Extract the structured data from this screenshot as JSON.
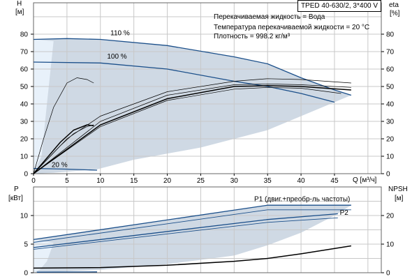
{
  "chart_data": [
    {
      "type": "line",
      "title": "TPED 40-630/2, 3*400 V",
      "info": [
        "Перекачиваемая жидкость = Вода",
        "Температура перекачиваемой жидкости = 20 °C",
        "Плотность = 998.2 кг/м³"
      ],
      "xlabel": "Q [м³/ч]",
      "ylabel": "H",
      "yunit": "[м]",
      "y2label": "eta",
      "y2unit": "[%]",
      "xlim": [
        0,
        52
      ],
      "ylim": [
        0,
        98
      ],
      "xticks": [
        0,
        5,
        10,
        15,
        20,
        25,
        30,
        35,
        40,
        45
      ],
      "yticks": [
        0,
        10,
        20,
        30,
        40,
        50,
        60,
        70,
        80
      ],
      "y2ticks": [
        0,
        10,
        20,
        30,
        40,
        50,
        60,
        70,
        80
      ],
      "grid": true,
      "shade_region": [
        [
          0,
          77
        ],
        [
          5,
          77.5
        ],
        [
          10,
          77
        ],
        [
          20,
          73.5
        ],
        [
          30,
          67
        ],
        [
          35,
          63
        ],
        [
          40,
          55
        ],
        [
          45,
          48
        ],
        [
          47.5,
          45
        ],
        [
          40,
          33
        ],
        [
          35,
          25
        ],
        [
          25,
          15
        ],
        [
          15,
          8
        ],
        [
          9.5,
          2.5
        ],
        [
          3,
          0.5
        ],
        [
          0,
          0
        ]
      ],
      "series": [
        {
          "name": "110 %",
          "label": "110 %",
          "kind": "head",
          "values": [
            [
              0,
              77
            ],
            [
              5,
              77.5
            ],
            [
              10,
              77
            ],
            [
              20,
              73.5
            ],
            [
              30,
              67
            ],
            [
              35,
              63
            ],
            [
              40,
              55
            ],
            [
              45,
              48
            ],
            [
              47.5,
              45
            ]
          ]
        },
        {
          "name": "100 %",
          "label": "100 %",
          "kind": "head",
          "values": [
            [
              0,
              64
            ],
            [
              10,
              63.5
            ],
            [
              20,
              60
            ],
            [
              30,
              53
            ],
            [
              35,
              50
            ],
            [
              40,
              46
            ],
            [
              45,
              41
            ]
          ]
        },
        {
          "name": "20 %",
          "label": "20 %",
          "kind": "head",
          "values": [
            [
              0,
              3
            ],
            [
              5,
              2.6
            ],
            [
              9.5,
              2
            ]
          ]
        },
        {
          "name": "eta-1",
          "kind": "eta-thin",
          "values": [
            [
              0,
              0
            ],
            [
              5,
              20
            ],
            [
              10,
              33
            ],
            [
              20,
              47
            ],
            [
              30,
              53
            ],
            [
              35,
              54.5
            ],
            [
              40,
              54
            ],
            [
              47.5,
              52
            ]
          ]
        },
        {
          "name": "eta-2",
          "kind": "eta-thin",
          "values": [
            [
              0,
              0
            ],
            [
              10,
              30
            ],
            [
              20,
              45
            ],
            [
              30,
              51
            ],
            [
              35,
              51.5
            ],
            [
              40,
              51
            ],
            [
              47.5,
              49.5
            ]
          ]
        },
        {
          "name": "eta-3",
          "kind": "eta-thick",
          "values": [
            [
              0,
              0
            ],
            [
              10,
              28
            ],
            [
              20,
              43
            ],
            [
              30,
              50
            ],
            [
              35,
              50.5
            ],
            [
              40,
              50
            ],
            [
              47.5,
              48
            ]
          ]
        },
        {
          "name": "eta-4",
          "kind": "eta-thin",
          "values": [
            [
              0,
              0
            ],
            [
              10,
              27
            ],
            [
              20,
              42
            ],
            [
              30,
              48.5
            ],
            [
              35,
              49.5
            ],
            [
              40,
              49
            ],
            [
              46,
              46
            ]
          ]
        },
        {
          "name": "eta-low-1",
          "kind": "eta-thin",
          "values": [
            [
              0,
              0
            ],
            [
              1.5,
              20
            ],
            [
              3,
              38
            ],
            [
              5,
              52
            ],
            [
              6.5,
              55
            ],
            [
              8,
              54
            ],
            [
              9,
              52
            ]
          ]
        },
        {
          "name": "eta-low-2",
          "kind": "eta-thick",
          "values": [
            [
              0,
              0
            ],
            [
              2,
              9
            ],
            [
              4,
              18
            ],
            [
              6,
              25
            ],
            [
              8,
              28
            ],
            [
              9,
              27.5
            ]
          ]
        },
        {
          "name": "eta-low-3",
          "kind": "eta-thin",
          "values": [
            [
              0,
              0
            ],
            [
              2,
              8
            ],
            [
              4,
              16
            ],
            [
              6,
              23
            ],
            [
              8,
              27
            ],
            [
              9,
              28
            ]
          ]
        }
      ]
    },
    {
      "type": "line",
      "ylabel": "P",
      "yunit": "[кВт]",
      "y2label": "NPSH",
      "y2unit": "[м]",
      "xlim": [
        0,
        52
      ],
      "ylim": [
        0,
        15
      ],
      "yticks": [
        0,
        5,
        10
      ],
      "y2ticks": [
        0,
        10,
        20
      ],
      "grid": true,
      "shade_region": [
        [
          0,
          5.8
        ],
        [
          35,
          11.8
        ],
        [
          47.5,
          11.8
        ],
        [
          45,
          10
        ],
        [
          40,
          7
        ],
        [
          35,
          4.8
        ],
        [
          30,
          3
        ],
        [
          20,
          1.5
        ],
        [
          10,
          0.5
        ],
        [
          0,
          0
        ]
      ],
      "series": [
        {
          "name": "P1 (двиг.+преобр-ль частоты)",
          "label": "P1 (двиг.+преобр-ль частоты)",
          "kind": "p",
          "values": [
            [
              0,
              5.8
            ],
            [
              35,
              11.8
            ],
            [
              47.5,
              11.8
            ]
          ]
        },
        {
          "name": "P1-100",
          "kind": "p-thin",
          "values": [
            [
              0,
              5.3
            ],
            [
              35,
              11
            ],
            [
              47.5,
              11
            ]
          ]
        },
        {
          "name": "P2",
          "label": "P2",
          "kind": "p",
          "values": [
            [
              0,
              4.4
            ],
            [
              35,
              9.3
            ],
            [
              45.5,
              10.3
            ]
          ]
        },
        {
          "name": "P2-100",
          "kind": "p-thin",
          "values": [
            [
              0,
              4.1
            ],
            [
              35,
              8.8
            ],
            [
              45.5,
              9.6
            ]
          ]
        },
        {
          "name": "P-20",
          "kind": "p",
          "values": [
            [
              0.5,
              0.1
            ],
            [
              9.5,
              0.15
            ]
          ]
        },
        {
          "name": "NPSH",
          "kind": "npsh",
          "values": [
            [
              0,
              0.8
            ],
            [
              10,
              0.9
            ],
            [
              20,
              1.3
            ],
            [
              30,
              2
            ],
            [
              35,
              2.5
            ],
            [
              40,
              3.3
            ],
            [
              47.5,
              4.7
            ]
          ]
        }
      ]
    }
  ],
  "colors": {
    "curve": "#1b4f8a",
    "shade": "#cfd9e4",
    "shade_light": "#e8f1fa",
    "grid": "#c8c8c8",
    "eta": "#000000"
  }
}
